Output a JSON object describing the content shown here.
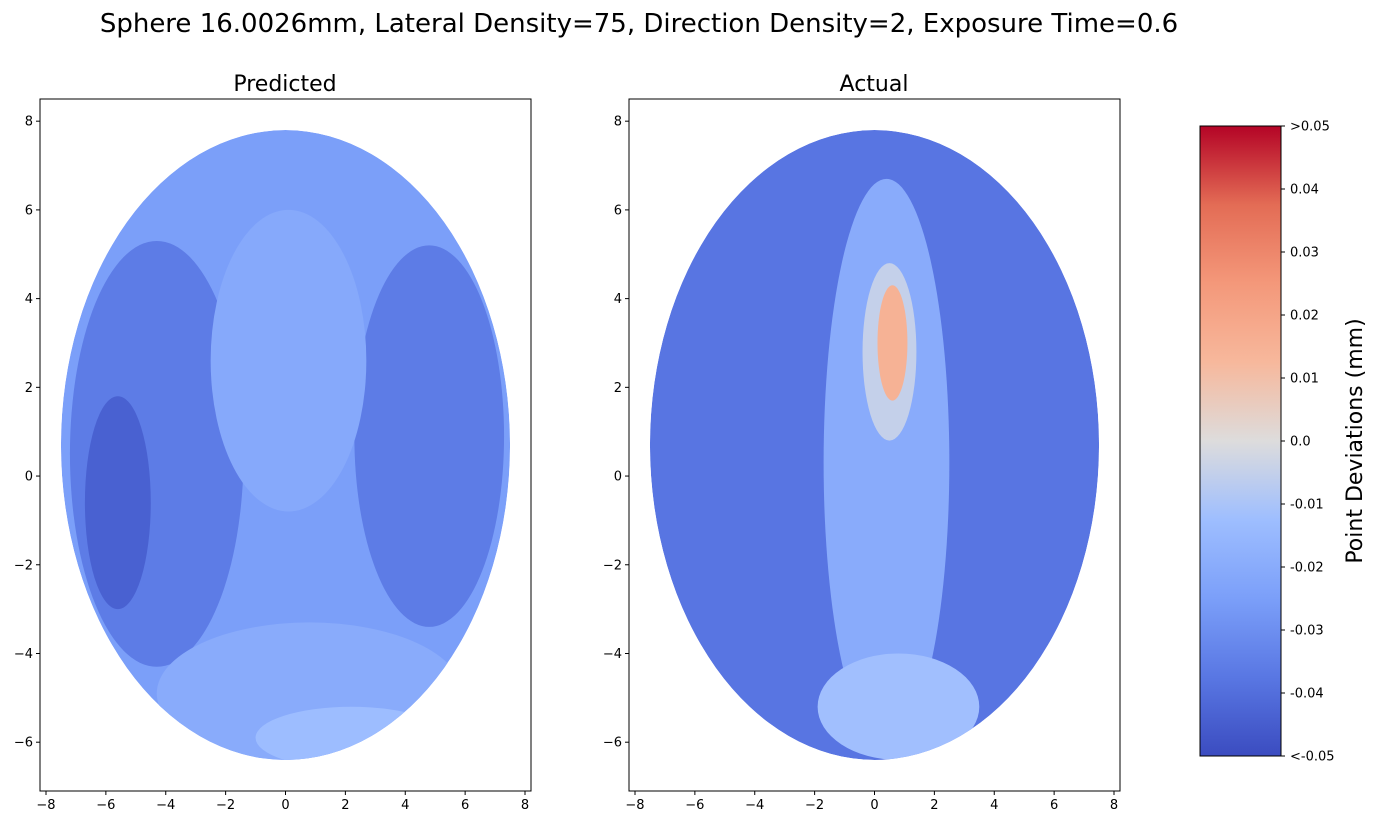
{
  "chart_data": {
    "type": "scatter",
    "suptitle": "Sphere 16.0026mm, Lateral Density=75, Direction Density=2, Exposure Time=0.6",
    "colormap": "coolwarm",
    "color_range": [
      -0.05,
      0.05
    ],
    "panels": [
      {
        "title": "Predicted",
        "xlim": [
          -8.2,
          8.2
        ],
        "ylim": [
          -7.1,
          8.5
        ],
        "xticks": [
          -8,
          -6,
          -4,
          -2,
          0,
          2,
          4,
          6,
          8
        ],
        "yticks": [
          -6,
          -4,
          -2,
          0,
          2,
          4,
          6,
          8
        ],
        "ellipse": {
          "cx": 0,
          "cy": 0.7,
          "rx": 7.5,
          "ry": 7.1
        },
        "regions": [
          {
            "cx": 0,
            "cy": 0.7,
            "rx": 7.5,
            "ry": 7.1,
            "value": -0.025
          },
          {
            "cx": -4.3,
            "cy": 0.5,
            "rx": 2.9,
            "ry": 4.8,
            "value": -0.036
          },
          {
            "cx": 4.8,
            "cy": 0.9,
            "rx": 2.5,
            "ry": 4.3,
            "value": -0.036
          },
          {
            "cx": -5.6,
            "cy": -0.6,
            "rx": 1.1,
            "ry": 2.4,
            "value": -0.044
          },
          {
            "cx": 0.1,
            "cy": 2.6,
            "rx": 2.6,
            "ry": 3.4,
            "value": -0.021
          },
          {
            "cx": 0.8,
            "cy": -4.9,
            "rx": 5.1,
            "ry": 1.6,
            "value": -0.02
          },
          {
            "cx": 2.2,
            "cy": -5.9,
            "rx": 3.2,
            "ry": 0.7,
            "value": -0.013
          }
        ]
      },
      {
        "title": "Actual",
        "xlim": [
          -8.2,
          8.2
        ],
        "ylim": [
          -7.1,
          8.5
        ],
        "xticks": [
          -8,
          -6,
          -4,
          -2,
          0,
          2,
          4,
          6,
          8
        ],
        "yticks": [
          -6,
          -4,
          -2,
          0,
          2,
          4,
          6,
          8
        ],
        "ellipse": {
          "cx": 0,
          "cy": 0.7,
          "rx": 7.5,
          "ry": 7.1
        },
        "regions": [
          {
            "cx": 0,
            "cy": 0.7,
            "rx": 7.5,
            "ry": 7.1,
            "value": -0.038
          },
          {
            "cx": 0.4,
            "cy": 0.3,
            "rx": 2.1,
            "ry": 6.4,
            "value": -0.02
          },
          {
            "cx": 0.5,
            "cy": 2.8,
            "rx": 0.9,
            "ry": 2.0,
            "value": -0.005
          },
          {
            "cx": 0.6,
            "cy": 3.0,
            "rx": 0.5,
            "ry": 1.3,
            "value": 0.015
          },
          {
            "cx": 0.8,
            "cy": -5.2,
            "rx": 2.7,
            "ry": 1.2,
            "value": -0.012
          }
        ]
      }
    ],
    "colorbar": {
      "label": "Point Deviations (mm)",
      "ticks": [
        {
          "value": 0.05,
          "label": ">0.05"
        },
        {
          "value": 0.04,
          "label": "0.04"
        },
        {
          "value": 0.03,
          "label": "0.03"
        },
        {
          "value": 0.02,
          "label": "0.02"
        },
        {
          "value": 0.01,
          "label": "0.01"
        },
        {
          "value": 0.0,
          "label": "0.0"
        },
        {
          "value": -0.01,
          "label": "-0.01"
        },
        {
          "value": -0.02,
          "label": "-0.02"
        },
        {
          "value": -0.03,
          "label": "-0.03"
        },
        {
          "value": -0.04,
          "label": "-0.04"
        },
        {
          "value": -0.05,
          "label": "<-0.05"
        }
      ]
    }
  }
}
